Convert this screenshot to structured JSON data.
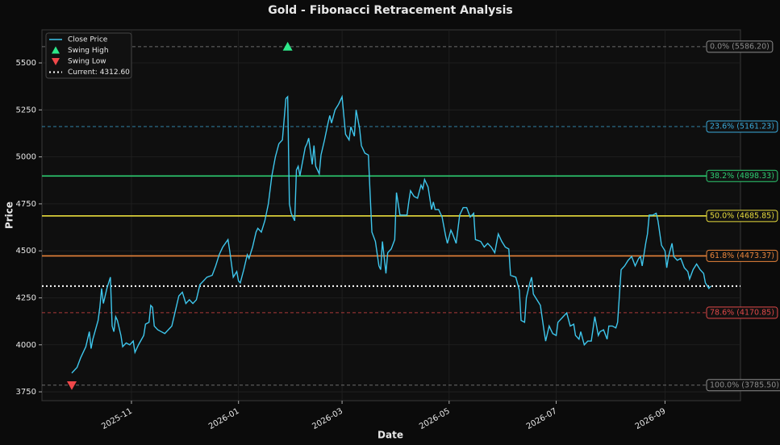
{
  "chart_data": {
    "type": "line",
    "title": "Gold - Fibonacci Retracement Analysis",
    "xlabel": "Date",
    "ylabel": "Price",
    "x": [
      27,
      30,
      32,
      35,
      37,
      38,
      39,
      42,
      43,
      44,
      45,
      47,
      49,
      50,
      51,
      52,
      53,
      55,
      56,
      58,
      60,
      62,
      63,
      65,
      68,
      69,
      71,
      72,
      73,
      74,
      76,
      78,
      80,
      83,
      84,
      86,
      88,
      90,
      92,
      94,
      96,
      98,
      100,
      102,
      104,
      107,
      109,
      111,
      113,
      116,
      117,
      119,
      121,
      122,
      123,
      125,
      127,
      128,
      130,
      132,
      133,
      135,
      137,
      139,
      141,
      143,
      145,
      147,
      149,
      150,
      151,
      152,
      154,
      155,
      156,
      157,
      159,
      160,
      161,
      162,
      164,
      165,
      166,
      168,
      169,
      171,
      173,
      174,
      175,
      177,
      179,
      181,
      183,
      185,
      186,
      188,
      189,
      191,
      192,
      194,
      196,
      197,
      198,
      200,
      202,
      203,
      204,
      206,
      207,
      209,
      211,
      212,
      214,
      215,
      218,
      219,
      220,
      222,
      224,
      226,
      227,
      228,
      230,
      232,
      233,
      234,
      236,
      238,
      240,
      241,
      243,
      244,
      246,
      248,
      250,
      252,
      254,
      256,
      257,
      260,
      262,
      264,
      266,
      268,
      270,
      272,
      274,
      276,
      277,
      280,
      282,
      283,
      285,
      286,
      288,
      289,
      290,
      292,
      294,
      296,
      297,
      299,
      301,
      303,
      304,
      307,
      309,
      311,
      313,
      314,
      316,
      317,
      319,
      321,
      323,
      325,
      327,
      328,
      330,
      332,
      333,
      335,
      337,
      338,
      340,
      342,
      344,
      346,
      348,
      350,
      351,
      352,
      354,
      355,
      356,
      358,
      360,
      361,
      363,
      365,
      366,
      367,
      369,
      370,
      372,
      374,
      376,
      378,
      379,
      381,
      383,
      385,
      387,
      388,
      390,
      391
    ],
    "series": [
      {
        "name": "Close Price",
        "color": "#3ec6ec",
        "values": [
          3850,
          3880,
          3930,
          3990,
          4070,
          3980,
          4030,
          4130,
          4200,
          4300,
          4220,
          4300,
          4360,
          4100,
          4070,
          4150,
          4130,
          4050,
          3990,
          4010,
          4000,
          4020,
          3960,
          4000,
          4050,
          4110,
          4120,
          4210,
          4200,
          4100,
          4080,
          4070,
          4060,
          4090,
          4100,
          4180,
          4260,
          4280,
          4220,
          4240,
          4220,
          4240,
          4320,
          4340,
          4360,
          4370,
          4420,
          4480,
          4520,
          4560,
          4500,
          4360,
          4390,
          4340,
          4330,
          4400,
          4480,
          4460,
          4520,
          4600,
          4620,
          4600,
          4660,
          4750,
          4900,
          5000,
          5070,
          5090,
          5310,
          5320,
          4750,
          4700,
          4660,
          4930,
          4950,
          4900,
          5000,
          5050,
          5070,
          5100,
          4960,
          5060,
          4950,
          4910,
          5010,
          5090,
          5180,
          5220,
          5180,
          5250,
          5280,
          5320,
          5120,
          5090,
          5160,
          5110,
          5250,
          5150,
          5060,
          5020,
          5010,
          4800,
          4600,
          4550,
          4420,
          4400,
          4550,
          4380,
          4490,
          4510,
          4560,
          4810,
          4690,
          4690,
          4690,
          4760,
          4820,
          4790,
          4780,
          4850,
          4830,
          4880,
          4840,
          4720,
          4760,
          4720,
          4720,
          4680,
          4580,
          4540,
          4610,
          4590,
          4540,
          4690,
          4730,
          4730,
          4680,
          4700,
          4560,
          4550,
          4520,
          4540,
          4520,
          4490,
          4590,
          4550,
          4520,
          4510,
          4370,
          4360,
          4290,
          4130,
          4120,
          4250,
          4330,
          4360,
          4270,
          4240,
          4210,
          4080,
          4020,
          4100,
          4060,
          4050,
          4120,
          4150,
          4170,
          4100,
          4110,
          4050,
          4030,
          4070,
          4000,
          4020,
          4020,
          4150,
          4050,
          4070,
          4080,
          4030,
          4100,
          4100,
          4090,
          4120,
          4400,
          4420,
          4450,
          4470,
          4420,
          4460,
          4470,
          4420,
          4540,
          4590,
          4690,
          4690,
          4700,
          4660,
          4530,
          4500,
          4410,
          4470,
          4540,
          4470,
          4450,
          4460,
          4410,
          4390,
          4350,
          4400,
          4430,
          4400,
          4380,
          4330,
          4300,
          4312.6
        ]
      }
    ],
    "markers": [
      {
        "name": "Swing High",
        "shape": "up",
        "color": "#2ee88a",
        "x": 150,
        "value": 5586.2
      },
      {
        "name": "Swing Low",
        "shape": "down",
        "color": "#f0484a",
        "x": 27,
        "value": 3785.5
      }
    ],
    "current": {
      "name": "Current: 4312.60",
      "value": 4312.6,
      "color": "#ffffff"
    },
    "levels": [
      {
        "label": "0.0% (5586.20)",
        "value": 5586.2,
        "color": "#8c8c8c",
        "dashed": true
      },
      {
        "label": "23.6% (5161.23)",
        "value": 5161.23,
        "color": "#3aa9d9",
        "dashed": true
      },
      {
        "label": "38.2% (4898.33)",
        "value": 4898.33,
        "color": "#2ecc71",
        "dashed": false
      },
      {
        "label": "50.0% (4685.85)",
        "value": 4685.85,
        "color": "#e8dc3c",
        "dashed": false
      },
      {
        "label": "61.8% (4473.37)",
        "value": 4473.37,
        "color": "#e8843a",
        "dashed": false
      },
      {
        "label": "78.6% (4170.85)",
        "value": 4170.85,
        "color": "#e04848",
        "dashed": true
      },
      {
        "label": "100.0% (3785.50)",
        "value": 3785.5,
        "color": "#8c8c8c",
        "dashed": true
      }
    ],
    "xlim": [
      10,
      408
    ],
    "xticks": [
      {
        "value": 61,
        "label": "2025-11"
      },
      {
        "value": 122,
        "label": "2026-01"
      },
      {
        "value": 181,
        "label": "2026-03"
      },
      {
        "value": 242,
        "label": "2026-05"
      },
      {
        "value": 303,
        "label": "2026-07"
      },
      {
        "value": 365,
        "label": "2026-09"
      }
    ],
    "ylim": [
      3703,
      5676
    ],
    "yticks": [
      3750,
      4000,
      4250,
      4500,
      4750,
      5000,
      5250,
      5500
    ],
    "grid": true,
    "legend": "upper left"
  }
}
